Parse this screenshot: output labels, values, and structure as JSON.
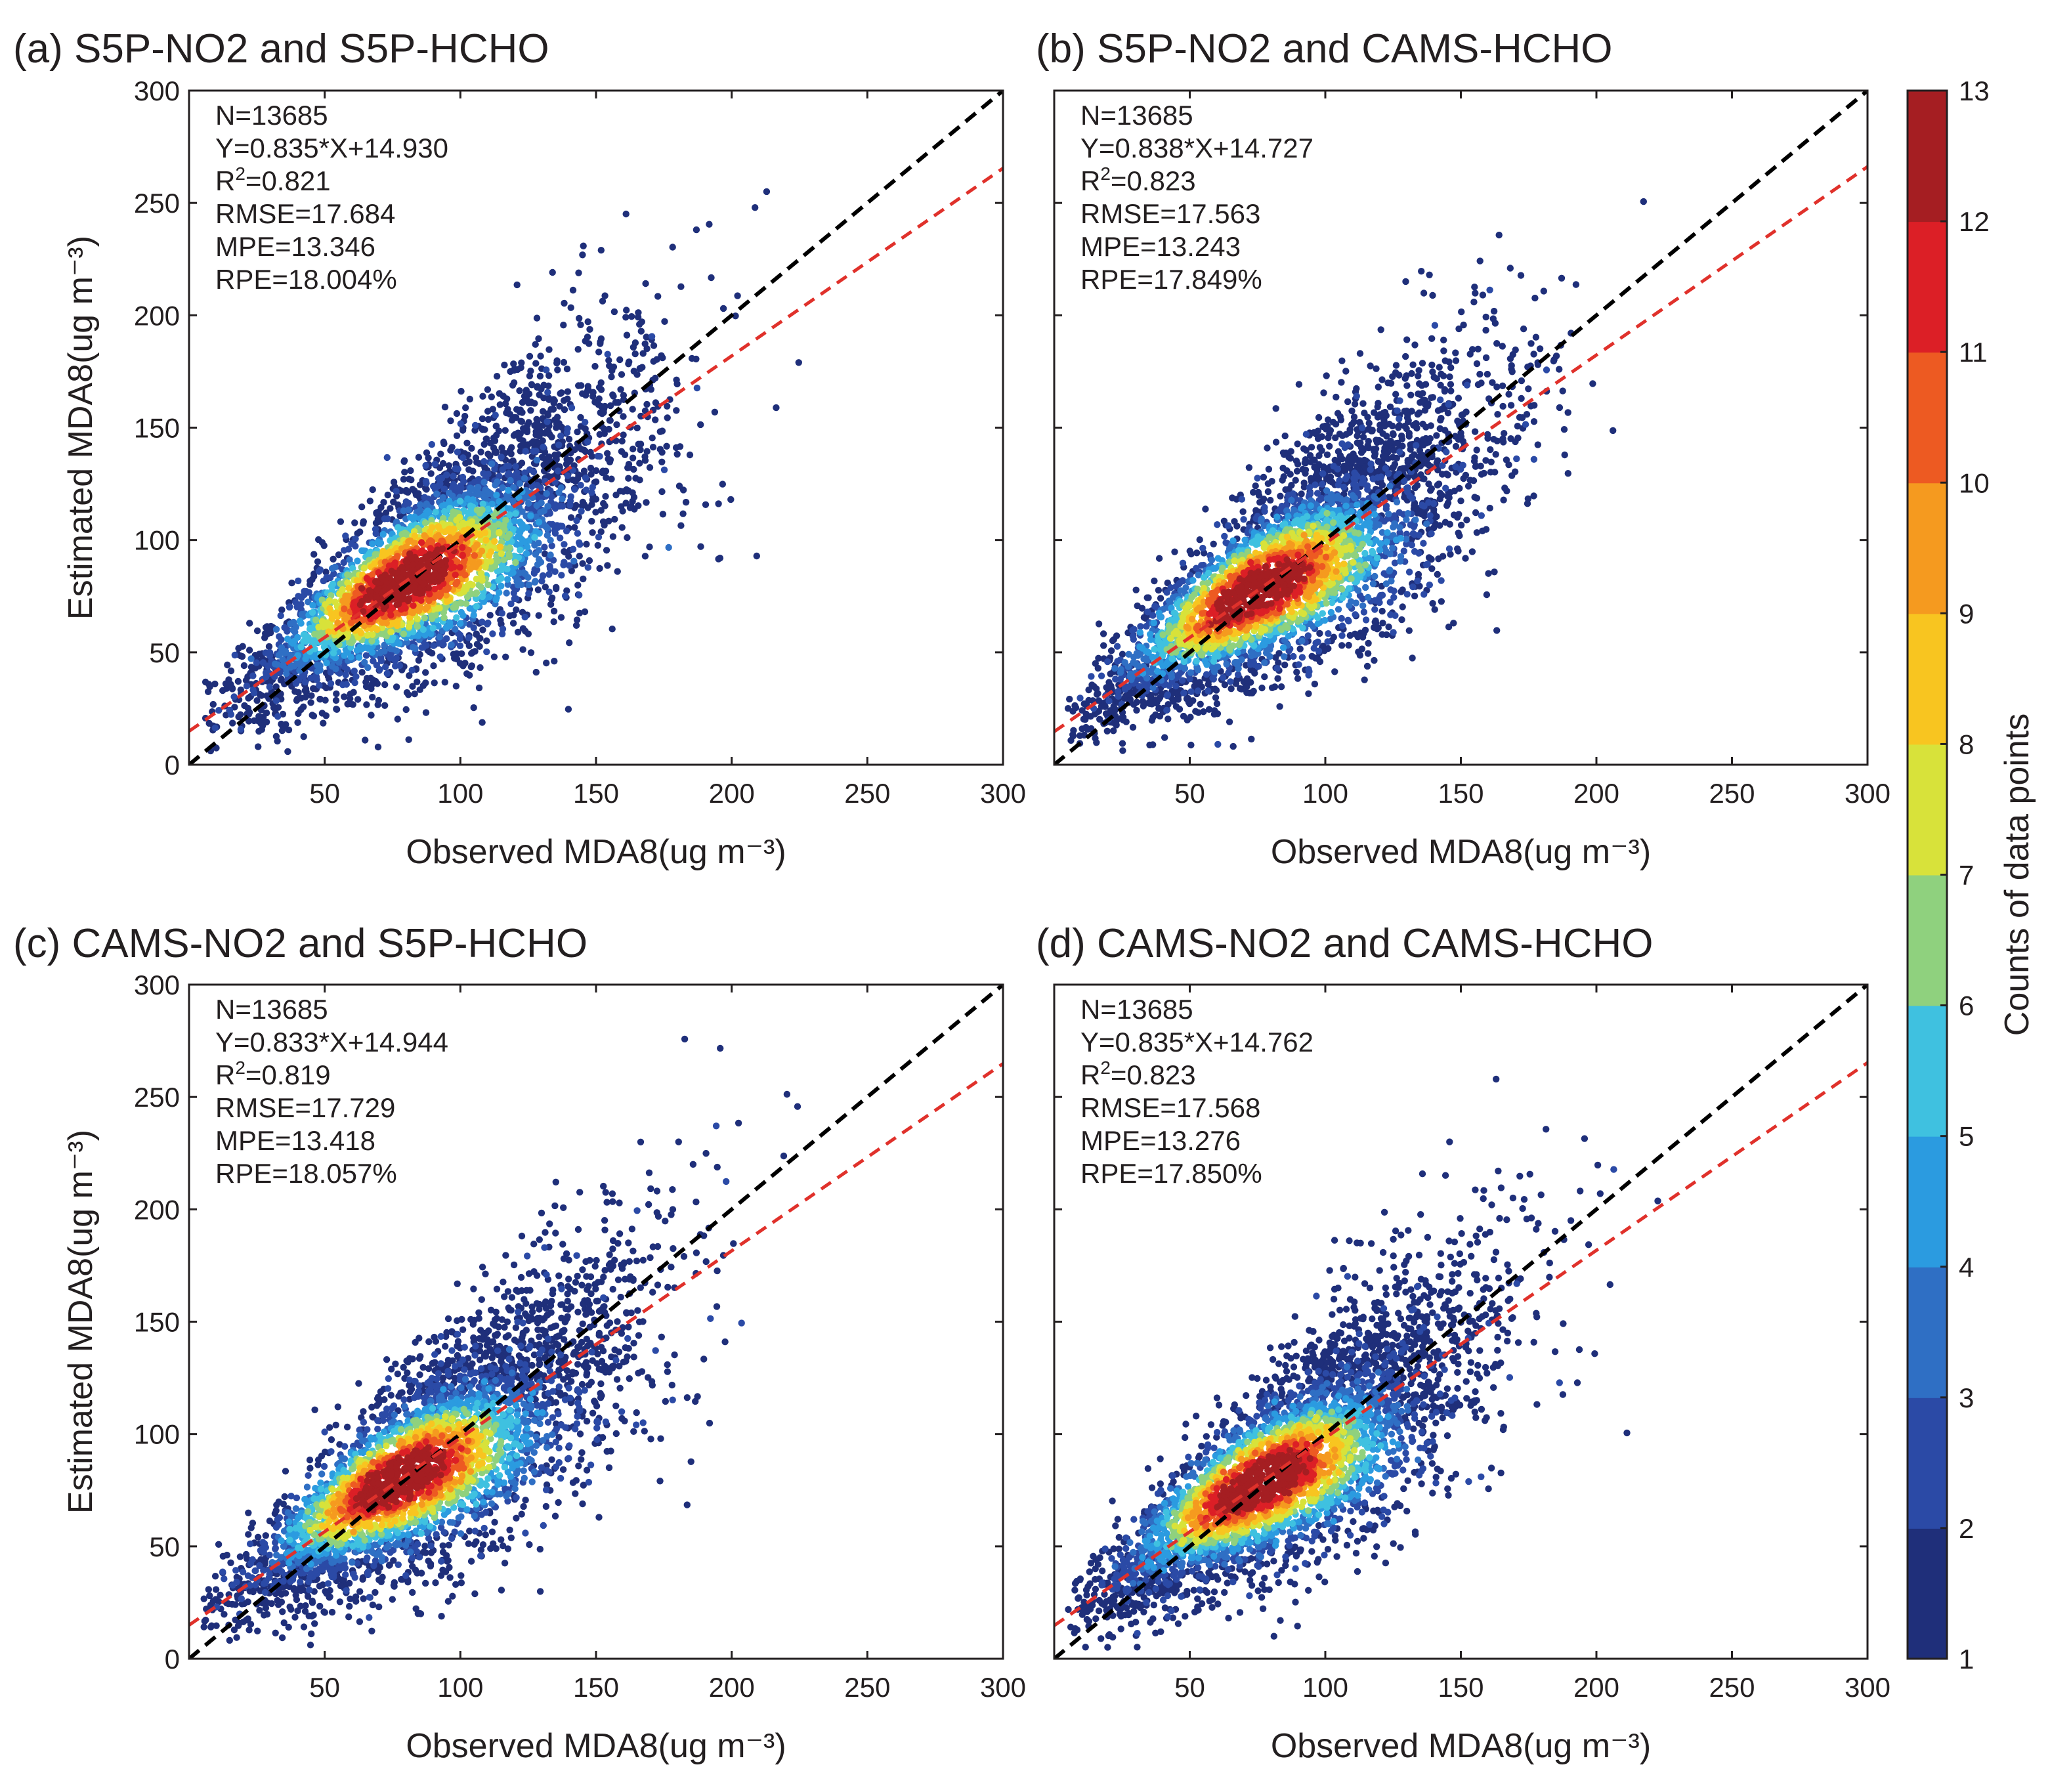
{
  "colorbar": {
    "label": "Counts of data points",
    "min": 1,
    "max": 13,
    "ticks": [
      1,
      2,
      3,
      4,
      5,
      6,
      7,
      8,
      9,
      10,
      11,
      12,
      13
    ],
    "colors": [
      "#1f2f7a",
      "#2b4aa6",
      "#2f6fc4",
      "#2b9be0",
      "#3fc1e0",
      "#8fd17e",
      "#d8e23a",
      "#f8c520",
      "#f59a1f",
      "#ed5a22",
      "#dc1f26",
      "#a51e22"
    ]
  },
  "chart_data": [
    {
      "type": "scatter",
      "panel_label": "(a)",
      "title": "S5P-NO2 and S5P-HCHO",
      "xlabel": "Observed MDA8(ug m⁻³)",
      "ylabel": "Estimated MDA8(ug m⁻³)",
      "xlim": [
        0,
        300
      ],
      "ylim": [
        0,
        300
      ],
      "xticks": [
        50,
        100,
        150,
        200,
        250,
        300
      ],
      "yticks": [
        0,
        50,
        100,
        150,
        200,
        250,
        300
      ],
      "stats": {
        "n": "N=13685",
        "eq": "Y=0.835*X+14.930",
        "r2_prefix": "R",
        "r2_sup": "2",
        "r2_value": "=0.821",
        "rmse": "RMSE=17.684",
        "mpe": "MPE=13.346",
        "rpe": "RPE=18.004%"
      },
      "fit": {
        "slope": 0.835,
        "intercept": 14.93,
        "color": "#e0312b"
      },
      "one_to_one": {
        "color": "#000000"
      },
      "density": {
        "center": [
          80,
          80
        ],
        "spread": 0.16,
        "slope": 0.835,
        "intercept": 14.93
      }
    },
    {
      "type": "scatter",
      "panel_label": "(b)",
      "title": "S5P-NO2 and CAMS-HCHO",
      "xlabel": "Observed MDA8(ug m⁻³)",
      "ylabel": "",
      "xlim": [
        0,
        300
      ],
      "ylim": [
        0,
        300
      ],
      "xticks": [
        50,
        100,
        150,
        200,
        250,
        300
      ],
      "yticks": [],
      "stats": {
        "n": "N=13685",
        "eq": "Y=0.838*X+14.727",
        "r2_prefix": "R",
        "r2_sup": "2",
        "r2_value": "=0.823",
        "rmse": "RMSE=17.563",
        "mpe": "MPE=13.243",
        "rpe": "RPE=17.849%"
      },
      "fit": {
        "slope": 0.838,
        "intercept": 14.727,
        "color": "#e0312b"
      },
      "one_to_one": {
        "color": "#000000"
      },
      "density": {
        "center": [
          75,
          75
        ],
        "spread": 0.16,
        "slope": 0.838,
        "intercept": 14.727
      }
    },
    {
      "type": "scatter",
      "panel_label": "(c)",
      "title": "CAMS-NO2 and S5P-HCHO",
      "xlabel": "Observed MDA8(ug m⁻³)",
      "ylabel": "Estimated MDA8(ug m⁻³)",
      "xlim": [
        0,
        300
      ],
      "ylim": [
        0,
        300
      ],
      "xticks": [
        50,
        100,
        150,
        200,
        250,
        300
      ],
      "yticks": [
        0,
        50,
        100,
        150,
        200,
        250,
        300
      ],
      "stats": {
        "n": "N=13685",
        "eq": "Y=0.833*X+14.944",
        "r2_prefix": "R",
        "r2_sup": "2",
        "r2_value": "=0.819",
        "rmse": "RMSE=17.729",
        "mpe": "MPE=13.418",
        "rpe": "RPE=18.057%"
      },
      "fit": {
        "slope": 0.833,
        "intercept": 14.944,
        "color": "#e0312b"
      },
      "one_to_one": {
        "color": "#000000"
      },
      "density": {
        "center": [
          78,
          78
        ],
        "spread": 0.16,
        "slope": 0.833,
        "intercept": 14.944
      }
    },
    {
      "type": "scatter",
      "panel_label": "(d)",
      "title": "CAMS-NO2 and CAMS-HCHO",
      "xlabel": "Observed MDA8(ug m⁻³)",
      "ylabel": "",
      "xlim": [
        0,
        300
      ],
      "ylim": [
        0,
        300
      ],
      "xticks": [
        50,
        100,
        150,
        200,
        250,
        300
      ],
      "yticks": [],
      "stats": {
        "n": "N=13685",
        "eq": "Y=0.835*X+14.762",
        "r2_prefix": "R",
        "r2_sup": "2",
        "r2_value": "=0.823",
        "rmse": "RMSE=17.568",
        "mpe": "MPE=13.276",
        "rpe": "RPE=17.850%"
      },
      "fit": {
        "slope": 0.835,
        "intercept": 14.762,
        "color": "#e0312b"
      },
      "one_to_one": {
        "color": "#000000"
      },
      "density": {
        "center": [
          76,
          76
        ],
        "spread": 0.16,
        "slope": 0.835,
        "intercept": 14.762
      }
    }
  ]
}
